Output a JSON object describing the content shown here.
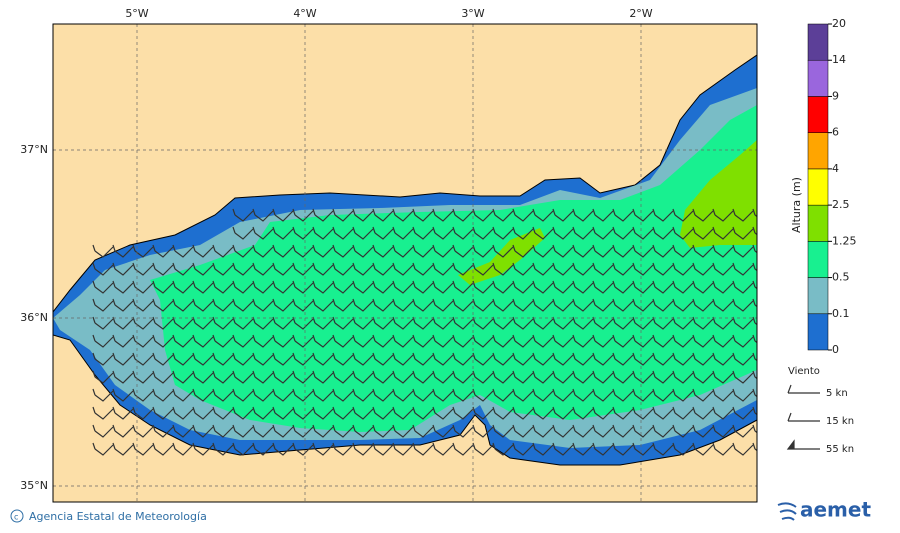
{
  "map": {
    "lon_labels": [
      "5°W",
      "4°W",
      "3°W",
      "2°W"
    ],
    "lat_labels": [
      "37°N",
      "36°N",
      "35°N"
    ],
    "colorbar": {
      "title": "Altura (m)",
      "levels": [
        0,
        0.1,
        0.5,
        1.25,
        2.5,
        4,
        6,
        9,
        14,
        20
      ],
      "colors": [
        "#1e6fd0",
        "#79bcc6",
        "#18f090",
        "#7fe000",
        "#ffff00",
        "#ffa500",
        "#ff0000",
        "#9a66dd",
        "#5c3f98"
      ]
    },
    "wind_legend": {
      "title": "Viento",
      "items": [
        "5 kn",
        "15 kn",
        "55 kn"
      ]
    },
    "footer": {
      "credit": "Agencia Estatal de Meteorología",
      "logo": "aemet"
    }
  }
}
